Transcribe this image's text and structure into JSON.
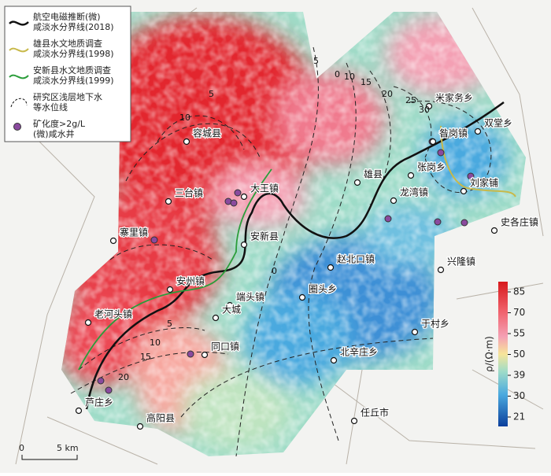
{
  "legend": {
    "items": [
      {
        "lines": [
          "航空电磁推断(微)",
          "咸淡水分界线(2018)"
        ]
      },
      {
        "lines": [
          "雄县水文地质调查",
          "咸淡水分界线(1998)"
        ]
      },
      {
        "lines": [
          "安新县水文地质调查",
          "咸淡水分界线(1999)"
        ]
      },
      {
        "lines": [
          "研究区浅层地下水",
          "等水位线"
        ]
      },
      {
        "lines": [
          "矿化度>2g/L",
          "(微)咸水井"
        ]
      }
    ]
  },
  "places": [
    "容城县",
    "三台镇",
    "大王镇",
    "安新县",
    "雄县",
    "龙湾镇",
    "张岗乡",
    "昝岗镇",
    "米家务乡",
    "双堂乡",
    "刘家铺",
    "史各庄镇",
    "寨里镇",
    "赵北口镇",
    "兴隆镇",
    "安州镇",
    "端头镇",
    "圈头乡",
    "老河头镇",
    "大城",
    "于村乡",
    "同口镇",
    "北辛庄乡",
    "芦庄乡",
    "高阳县",
    "任丘市"
  ],
  "contour_labels": [
    "5",
    "10",
    "5",
    "0",
    "10",
    "15",
    "20",
    "25",
    "30",
    "0",
    "5",
    "10",
    "15",
    "20"
  ],
  "colorbar": {
    "label": "ρ/(Ω·m)",
    "ticks": [
      85,
      70,
      55,
      50,
      39,
      30,
      21
    ]
  },
  "scale": {
    "start": "0",
    "end": "5 km"
  }
}
